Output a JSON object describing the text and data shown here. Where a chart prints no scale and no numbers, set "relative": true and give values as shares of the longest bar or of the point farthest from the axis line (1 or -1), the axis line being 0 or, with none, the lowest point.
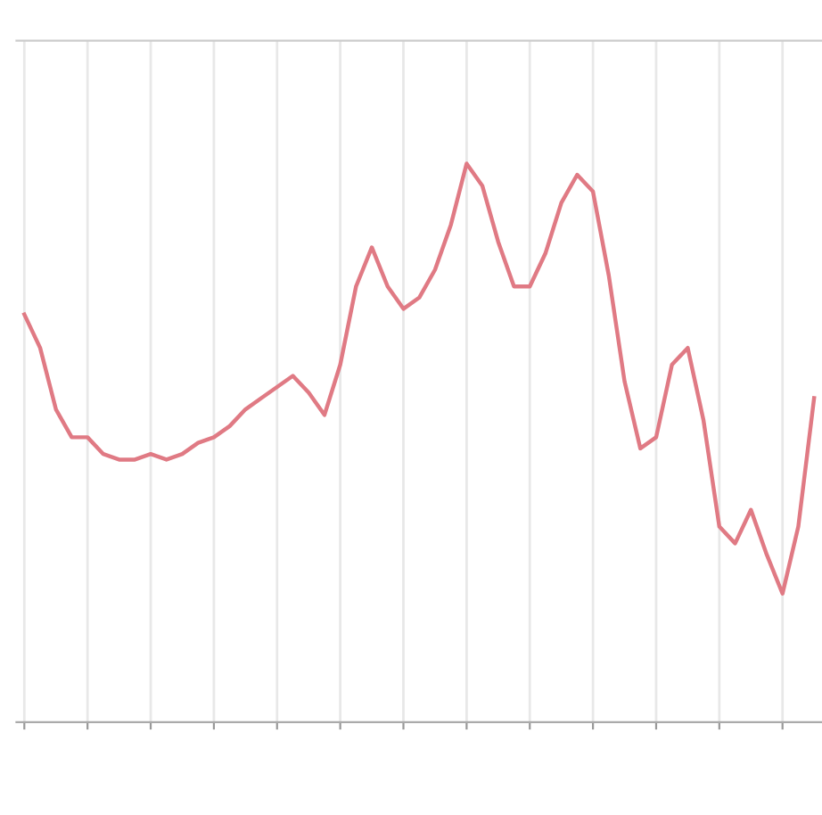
{
  "chart_data": {
    "type": "line",
    "relative": true,
    "grid": "x",
    "line_style": "solid",
    "categories": [
      null,
      null,
      null,
      null,
      null,
      null,
      null,
      null,
      null,
      null,
      null,
      null,
      null,
      null,
      null,
      null,
      null,
      null,
      null,
      null,
      null,
      null,
      null,
      null,
      null,
      null,
      null,
      null,
      null,
      null,
      null,
      null,
      null,
      null,
      null,
      null,
      null,
      null,
      null,
      null,
      null,
      null,
      null,
      null,
      null,
      null,
      null,
      null,
      null,
      null,
      null
    ],
    "series": [
      {
        "color": "#e07a84",
        "values": [
          0.73,
          0.67,
          0.56,
          0.51,
          0.51,
          0.48,
          0.47,
          0.47,
          0.48,
          0.47,
          0.48,
          0.5,
          0.51,
          0.53,
          0.56,
          0.58,
          0.6,
          0.62,
          0.59,
          0.55,
          0.64,
          0.78,
          0.85,
          0.78,
          0.74,
          0.76,
          0.81,
          0.89,
          1.0,
          0.96,
          0.86,
          0.78,
          0.78,
          0.84,
          0.93,
          0.98,
          0.95,
          0.8,
          0.61,
          0.49,
          0.51,
          0.64,
          0.67,
          0.54,
          0.35,
          0.32,
          0.38,
          0.3,
          0.23,
          0.35,
          0.58
        ]
      }
    ]
  }
}
